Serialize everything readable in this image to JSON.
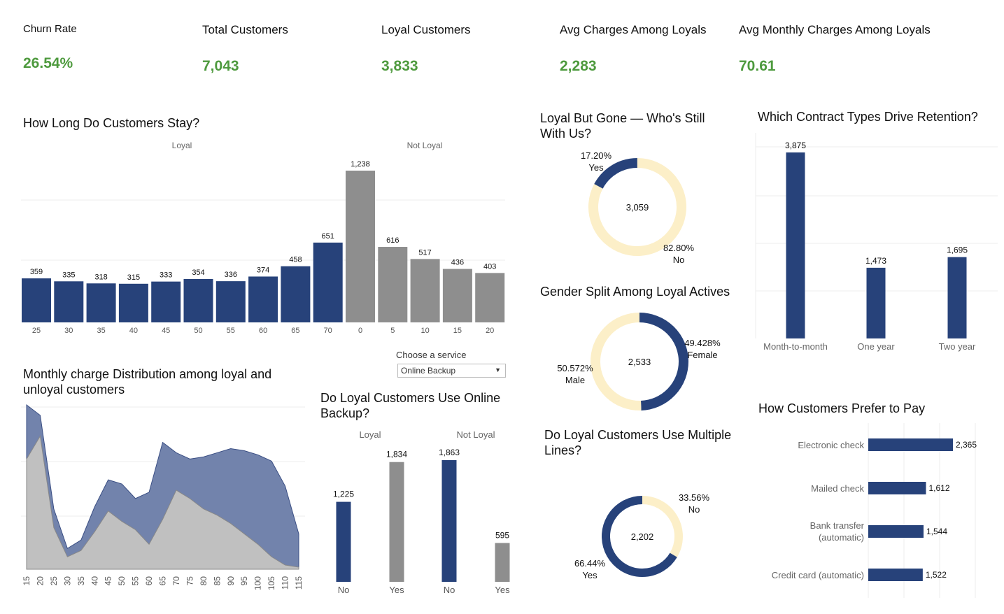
{
  "kpis": [
    {
      "label": "Churn Rate",
      "value": "26.54%"
    },
    {
      "label": "Total Customers",
      "value": "7,043"
    },
    {
      "label": "Loyal Customers",
      "value": "3,833"
    },
    {
      "label": "Avg Charges Among Loyals",
      "value": "2,283"
    },
    {
      "label": "Avg Monthly Charges Among Loyals",
      "value": "70.61"
    }
  ],
  "titles": {
    "tenure": "How Long Do Customers Stay?",
    "donut_gone": "Loyal But Gone — Who's Still With Us?",
    "contract": "Which Contract Types Drive Retention?",
    "gender": "Gender Split Among Loyal Actives",
    "monthly": "Monthly charge Distribution among loyal and unloyal customers",
    "backup": "Do Loyal Customers Use Online Backup?",
    "lines": "Do Loyal Customers Use Multiple Lines?",
    "payment": "How Customers Prefer to Pay"
  },
  "service_selector": {
    "label": "Choose a service",
    "value": "Online Backup"
  },
  "colors": {
    "loyal": "#27427a",
    "not_loyal": "#8e8e8e",
    "donut_light": "#fcefc8",
    "area_light": "#c0c0c0",
    "area_dark": "#7283ac"
  },
  "chart_data": [
    {
      "type": "bar",
      "id": "tenure",
      "panels": [
        "Loyal",
        "Not Loyal"
      ],
      "categories": [
        "25",
        "30",
        "35",
        "40",
        "45",
        "50",
        "55",
        "60",
        "65",
        "70",
        "0",
        "5",
        "10",
        "15",
        "20"
      ],
      "groups": [
        "Loyal",
        "Loyal",
        "Loyal",
        "Loyal",
        "Loyal",
        "Loyal",
        "Loyal",
        "Loyal",
        "Loyal",
        "Loyal",
        "Not Loyal",
        "Not Loyal",
        "Not Loyal",
        "Not Loyal",
        "Not Loyal"
      ],
      "values": [
        359,
        335,
        318,
        315,
        333,
        354,
        336,
        374,
        458,
        651,
        1238,
        616,
        517,
        436,
        403
      ],
      "labels": [
        "359",
        "335",
        "318",
        "315",
        "333",
        "354",
        "336",
        "374",
        "458",
        "651",
        "1,238",
        "616",
        "517",
        "436",
        "403"
      ],
      "ylim": [
        0,
        1300
      ]
    },
    {
      "type": "pie",
      "id": "gone",
      "center_label": "3,059",
      "slices": [
        {
          "name": "Yes",
          "value": 17.2,
          "label": "17.20%"
        },
        {
          "name": "No",
          "value": 82.8,
          "label": "82.80%"
        }
      ]
    },
    {
      "type": "bar",
      "id": "contract",
      "categories": [
        "Month-to-month",
        "One year",
        "Two year"
      ],
      "values": [
        3875,
        1473,
        1695
      ],
      "labels": [
        "3,875",
        "1,473",
        "1,695"
      ],
      "ylim": [
        0,
        4000
      ]
    },
    {
      "type": "pie",
      "id": "gender",
      "center_label": "2,533",
      "slices": [
        {
          "name": "Female",
          "value": 49.428,
          "label": "49.428%"
        },
        {
          "name": "Male",
          "value": 50.572,
          "label": "50.572%"
        }
      ]
    },
    {
      "type": "area",
      "id": "monthly",
      "x": [
        "15",
        "20",
        "25",
        "30",
        "35",
        "40",
        "45",
        "50",
        "55",
        "60",
        "65",
        "70",
        "75",
        "80",
        "85",
        "90",
        "95",
        "100",
        "105",
        "110",
        "115"
      ],
      "series": [
        {
          "values": [
            530,
            640,
            200,
            60,
            90,
            180,
            280,
            230,
            190,
            120,
            240,
            380,
            340,
            290,
            260,
            220,
            170,
            120,
            60,
            20,
            10
          ]
        },
        {
          "values": [
            260,
            100,
            90,
            40,
            50,
            120,
            150,
            180,
            150,
            250,
            370,
            180,
            190,
            250,
            300,
            360,
            400,
            430,
            460,
            380,
            160
          ]
        }
      ],
      "ylim": [
        0,
        780
      ]
    },
    {
      "type": "bar",
      "id": "backup",
      "panels": [
        "Loyal",
        "Not Loyal"
      ],
      "categories": [
        "No",
        "Yes",
        "No",
        "Yes"
      ],
      "groups": [
        "Loyal",
        "Loyal",
        "Not Loyal",
        "Not Loyal"
      ],
      "values": [
        1225,
        1834,
        1863,
        595
      ],
      "labels": [
        "1,225",
        "1,834",
        "1,863",
        "595"
      ],
      "ylim": [
        0,
        1900
      ]
    },
    {
      "type": "pie",
      "id": "lines",
      "center_label": "2,202",
      "slices": [
        {
          "name": "No",
          "value": 33.56,
          "label": "33.56%"
        },
        {
          "name": "Yes",
          "value": 66.44,
          "label": "66.44%"
        }
      ]
    },
    {
      "type": "bar",
      "id": "payment",
      "orientation": "horizontal",
      "categories": [
        "Electronic check",
        "Mailed check",
        "Bank transfer (automatic)",
        "Credit card (automatic)"
      ],
      "values": [
        2365,
        1612,
        1544,
        1522
      ],
      "labels": [
        "2,365",
        "1,612",
        "1,544",
        "1,522"
      ],
      "xlim": [
        0,
        2500
      ]
    }
  ]
}
